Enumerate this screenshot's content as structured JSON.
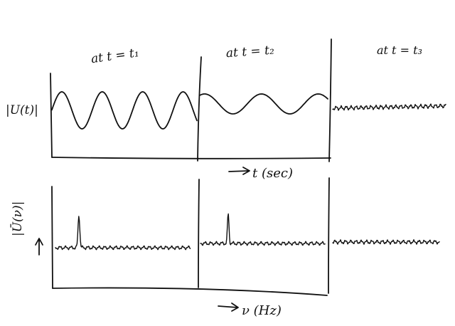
{
  "headings": {
    "t1": "at  t = t₁",
    "t2": "at  t = t₂",
    "t3": "at  t = t₃"
  },
  "top_axis": {
    "ylabel": "|U(t)|",
    "xlabel": "t (sec)"
  },
  "bottom_axis": {
    "ylabel": "|Ū(ν)|",
    "xlabel": "ν (Hz)"
  },
  "colors": {
    "ink": "#111111",
    "paper": "#ffffff"
  }
}
